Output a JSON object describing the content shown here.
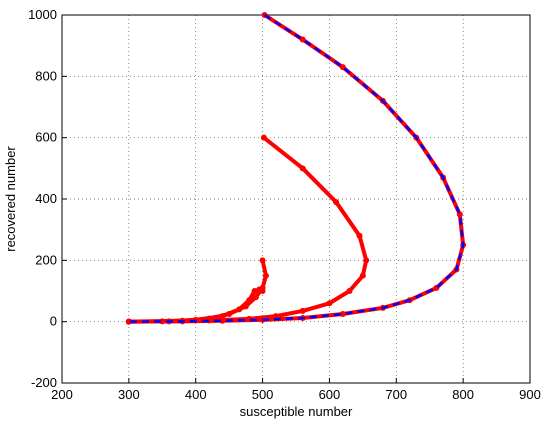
{
  "chart_data": {
    "type": "line",
    "xlabel": "susceptible number",
    "ylabel": "recovered number",
    "xlim": [
      200,
      900
    ],
    "xticks": [
      200,
      300,
      400,
      500,
      600,
      700,
      800,
      900
    ],
    "ylim": [
      -200,
      1000
    ],
    "yticks": [
      -200,
      0,
      200,
      400,
      600,
      800,
      1000
    ],
    "grid": true,
    "series": [
      {
        "color": "#ff0000",
        "style": "dots",
        "x": [
          503,
          560,
          620,
          680,
          730,
          770,
          795,
          800,
          790,
          760,
          720,
          680,
          620,
          560,
          500,
          440,
          380,
          300
        ],
        "values": [
          1000,
          920,
          830,
          720,
          600,
          470,
          350,
          250,
          170,
          110,
          70,
          45,
          25,
          12,
          6,
          3,
          1,
          0
        ]
      },
      {
        "color": "#ff0000",
        "style": "dots",
        "x": [
          502,
          560,
          610,
          645,
          655,
          650,
          630,
          600,
          560,
          520,
          480,
          420,
          360,
          300
        ],
        "values": [
          600,
          500,
          390,
          280,
          200,
          150,
          100,
          60,
          35,
          18,
          9,
          4,
          1,
          0
        ]
      },
      {
        "color": "#ff0000",
        "style": "dots",
        "x": [
          500,
          505,
          500,
          490,
          475,
          450,
          420,
          380,
          300
        ],
        "values": [
          200,
          150,
          110,
          80,
          50,
          25,
          10,
          3,
          0
        ]
      },
      {
        "color": "#ff0000",
        "style": "dots",
        "x": [
          500,
          495,
          488,
          480,
          465,
          440,
          400,
          350,
          300
        ],
        "values": [
          100,
          105,
          100,
          70,
          40,
          18,
          6,
          1,
          0
        ]
      },
      {
        "color": "#0000ff",
        "style": "dashed",
        "x": [
          503,
          560,
          620,
          680,
          730,
          770,
          795,
          800,
          790,
          760,
          720,
          680,
          620,
          560,
          500,
          440,
          380,
          300
        ],
        "values": [
          1000,
          920,
          830,
          720,
          600,
          470,
          350,
          250,
          170,
          110,
          70,
          45,
          25,
          12,
          6,
          3,
          1,
          0
        ]
      }
    ]
  }
}
